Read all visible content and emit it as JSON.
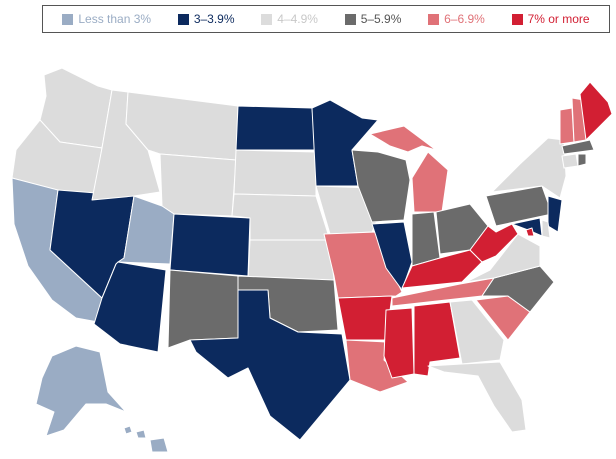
{
  "legend": {
    "items": [
      {
        "label": "Less than 3%",
        "color": "#9aacc4"
      },
      {
        "label": "3–3.9%",
        "color": "#0c2a5e"
      },
      {
        "label": "4–4.9%",
        "color": "#dcdcdc"
      },
      {
        "label": "5–5.9%",
        "color": "#6b6b6b"
      },
      {
        "label": "6–6.9%",
        "color": "#e07278"
      },
      {
        "label": "7% or more",
        "color": "#d21f33"
      }
    ]
  },
  "state_categories": {
    "WA": 2,
    "OR": 2,
    "CA": 0,
    "NV": 1,
    "ID": 2,
    "MT": 2,
    "WY": 2,
    "UT": 0,
    "AZ": 1,
    "CO": 1,
    "NM": 3,
    "ND": 1,
    "SD": 2,
    "NE": 2,
    "KS": 2,
    "OK": 3,
    "TX": 1,
    "MN": 1,
    "IA": 2,
    "MO": 4,
    "AR": 5,
    "LA": 4,
    "WI": 3,
    "IL": 1,
    "MI": 4,
    "IN": 3,
    "OH": 3,
    "KY": 5,
    "TN": 4,
    "MS": 5,
    "AL": 5,
    "GA": 2,
    "FL": 2,
    "SC": 4,
    "NC": 3,
    "VA": 2,
    "WV": 5,
    "MD": 1,
    "DE": 2,
    "NJ": 1,
    "PA": 3,
    "NY": 2,
    "CT": 2,
    "RI": 3,
    "MA": 3,
    "VT": 4,
    "NH": 4,
    "ME": 5,
    "AK": 0,
    "HI": 0,
    "DC": 5
  }
}
